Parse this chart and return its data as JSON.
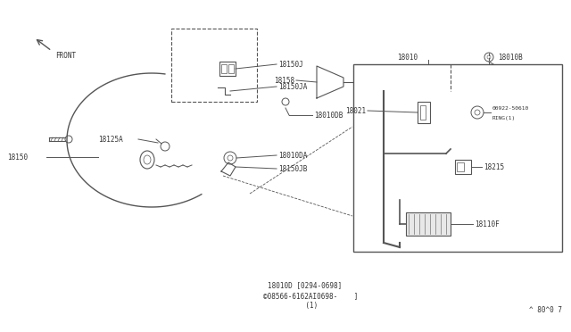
{
  "bg_color": "#ffffff",
  "line_color": "#555555",
  "text_color": "#333333",
  "fs": 6.0,
  "footer1": "18010D [0294-0698]",
  "footer2": "©08566-6162AI0698-    ]",
  "footer3": "       (1)",
  "version": "^ 80^0 7"
}
